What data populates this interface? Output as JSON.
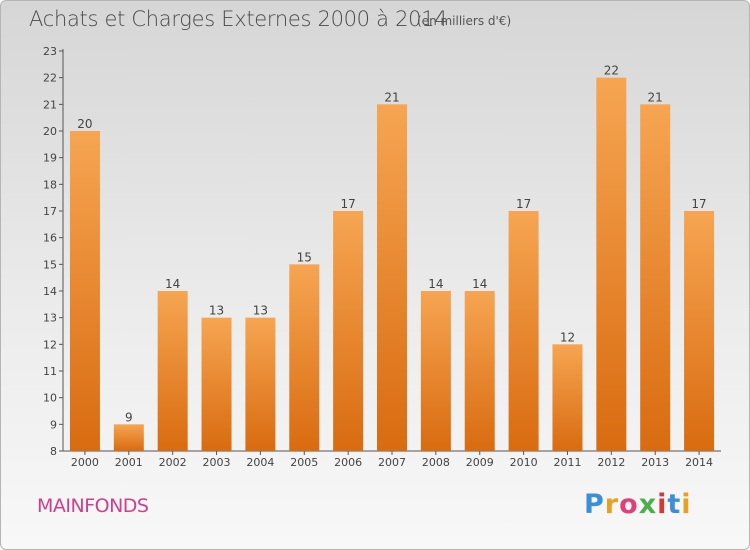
{
  "header": {
    "title": "Achats et Charges Externes 2000 à 2014",
    "subtitle": "(en milliers d'€)"
  },
  "footer": {
    "location": "MAINFONDS",
    "brand": "Proxiti"
  },
  "brand_colors": [
    "#3b8ed8",
    "#e8a020",
    "#e0407a",
    "#4cae4c",
    "#d23a3a",
    "#3b8ed8",
    "#e8a020"
  ],
  "colors": {
    "bar_top": "#f6a552",
    "bar_bottom": "#d96b10",
    "axis": "#555555",
    "location": "#d0408a"
  },
  "chart_data": {
    "type": "bar",
    "title": "Achats et Charges Externes 2000 à 2014",
    "subtitle": "(en milliers d'€)",
    "xlabel": "",
    "ylabel": "",
    "categories": [
      "2000",
      "2001",
      "2002",
      "2003",
      "2004",
      "2005",
      "2006",
      "2007",
      "2008",
      "2009",
      "2010",
      "2011",
      "2012",
      "2013",
      "2014"
    ],
    "values": [
      20,
      9,
      14,
      13,
      13,
      15,
      17,
      21,
      14,
      14,
      17,
      12,
      22,
      21,
      17
    ],
    "ylim": [
      8,
      23
    ],
    "yticks": [
      8,
      9,
      10,
      11,
      12,
      13,
      14,
      15,
      16,
      17,
      18,
      19,
      20,
      21,
      22,
      23
    ],
    "grid": false,
    "legend": "none"
  }
}
